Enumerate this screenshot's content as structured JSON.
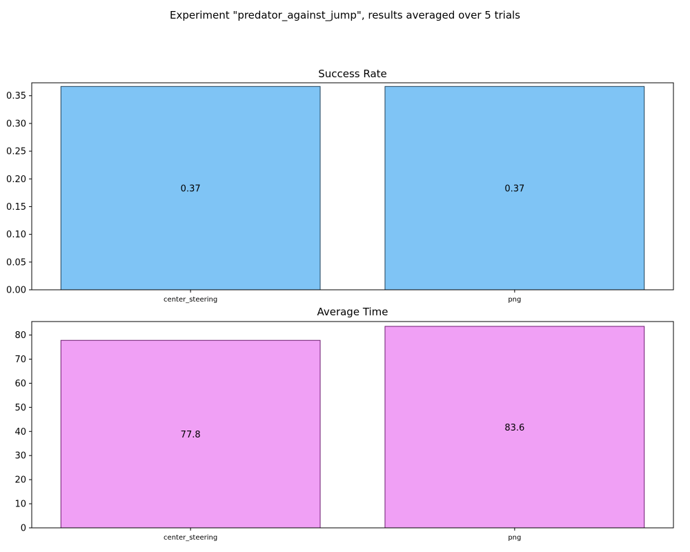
{
  "figure": {
    "suptitle": "Experiment \"predator_against_jump\", results averaged over 5 trials"
  },
  "chart_data": [
    {
      "type": "bar",
      "title": "Success Rate",
      "categories": [
        "center_steering",
        "png"
      ],
      "values": [
        0.3667,
        0.3667
      ],
      "value_labels": [
        "0.37",
        "0.37"
      ],
      "ylim": [
        0,
        0.3733
      ],
      "yticks": [
        0.0,
        0.05,
        0.1,
        0.15,
        0.2,
        0.25,
        0.3,
        0.35
      ],
      "ytick_labels": [
        "0.00",
        "0.05",
        "0.10",
        "0.15",
        "0.20",
        "0.25",
        "0.30",
        "0.35"
      ],
      "grid": false,
      "bar_color": "#7fc4f5",
      "edge_color": "#1f3f57"
    },
    {
      "type": "bar",
      "title": "Average Time",
      "categories": [
        "center_steering",
        "png"
      ],
      "values": [
        77.8,
        83.6
      ],
      "value_labels": [
        "77.8",
        "83.6"
      ],
      "ylim": [
        0,
        85.6
      ],
      "yticks": [
        0,
        10,
        20,
        30,
        40,
        50,
        60,
        70,
        80
      ],
      "ytick_labels": [
        "0",
        "10",
        "20",
        "30",
        "40",
        "50",
        "60",
        "70",
        "80"
      ],
      "grid": false,
      "bar_color": "#f0a0f5",
      "edge_color": "#6b1a6e"
    }
  ]
}
